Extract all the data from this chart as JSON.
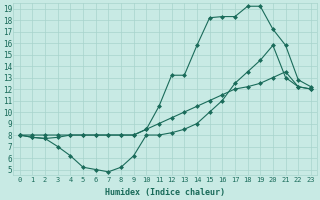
{
  "xlabel": "Humidex (Indice chaleur)",
  "xlim": [
    -0.5,
    23.5
  ],
  "ylim": [
    4.5,
    19.5
  ],
  "xticks": [
    0,
    1,
    2,
    3,
    4,
    5,
    6,
    7,
    8,
    9,
    10,
    11,
    12,
    13,
    14,
    15,
    16,
    17,
    18,
    19,
    20,
    21,
    22,
    23
  ],
  "yticks": [
    5,
    6,
    7,
    8,
    9,
    10,
    11,
    12,
    13,
    14,
    15,
    16,
    17,
    18,
    19
  ],
  "bg_color": "#c8eae4",
  "grid_color": "#a8d4cc",
  "line_color": "#1a6b5a",
  "curve1_x": [
    0,
    1,
    2,
    3,
    4,
    5,
    6,
    7,
    8,
    9,
    10,
    11,
    12,
    13,
    14,
    15,
    16,
    17,
    18,
    19,
    20,
    21,
    22,
    23
  ],
  "curve1_y": [
    8,
    7.8,
    7.7,
    7,
    6.2,
    5.2,
    5.0,
    4.8,
    5.2,
    6.2,
    8.0,
    8.0,
    8.2,
    8.5,
    9.0,
    10.0,
    11.0,
    12.5,
    13.5,
    14.5,
    15.8,
    13.0,
    12.2,
    12.0
  ],
  "curve2_x": [
    0,
    1,
    2,
    3,
    4,
    5,
    6,
    7,
    8,
    9,
    10,
    11,
    12,
    13,
    14,
    15,
    16,
    17,
    18,
    19,
    20,
    21,
    22,
    23
  ],
  "curve2_y": [
    8,
    7.8,
    7.7,
    7.8,
    8.0,
    8.0,
    8.0,
    8.0,
    8.0,
    8.0,
    8.5,
    10.5,
    13.2,
    13.2,
    15.8,
    18.2,
    18.3,
    18.3,
    19.2,
    19.2,
    17.2,
    15.8,
    12.8,
    12.2
  ],
  "curve3_x": [
    0,
    1,
    2,
    3,
    4,
    5,
    6,
    7,
    8,
    9,
    10,
    11,
    12,
    13,
    14,
    15,
    16,
    17,
    18,
    19,
    20,
    21,
    22,
    23
  ],
  "curve3_y": [
    8,
    8,
    8,
    8,
    8,
    8,
    8,
    8,
    8,
    8,
    8.5,
    9.0,
    9.5,
    10.0,
    10.5,
    11.0,
    11.5,
    12.0,
    12.2,
    12.5,
    13.0,
    13.5,
    12.2,
    12.0
  ]
}
